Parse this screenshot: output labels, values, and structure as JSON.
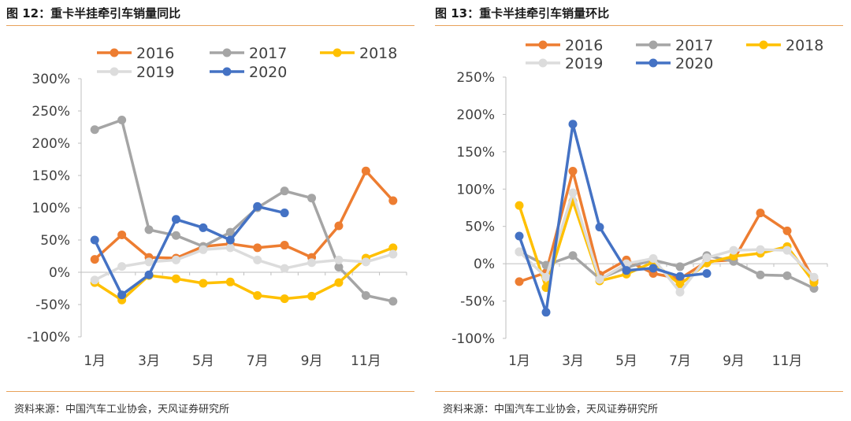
{
  "charts": [
    {
      "title": "图 12：重卡半挂牵引车销量同比",
      "source": "资料来源：中国汽车工业协会，天风证券研究所"
    },
    {
      "title": "图 13：重卡半挂牵引车销量环比",
      "source": "资料来源：中国汽车工业协会，天风证券研究所"
    }
  ],
  "chart_data": [
    {
      "type": "line",
      "title": "",
      "x": [
        "1月",
        "2月",
        "3月",
        "4月",
        "5月",
        "6月",
        "7月",
        "8月",
        "9月",
        "10月",
        "11月",
        "12月"
      ],
      "x_tick_labels": [
        "1月",
        "3月",
        "5月",
        "7月",
        "9月",
        "11月"
      ],
      "y_tick_labels": [
        "300%",
        "250%",
        "200%",
        "150%",
        "100%",
        "50%",
        "0%",
        "-50%",
        "-100%"
      ],
      "ylim": [
        -100,
        300
      ],
      "y_unit": "%",
      "grid": false,
      "legend_position": "top",
      "series": [
        {
          "name": "2016",
          "color": "#ED7D31",
          "values": [
            20,
            58,
            23,
            22,
            40,
            44,
            38,
            42,
            23,
            72,
            157,
            111
          ]
        },
        {
          "name": "2017",
          "color": "#A5A5A5",
          "values": [
            221,
            236,
            66,
            57,
            40,
            62,
            100,
            126,
            115,
            8,
            -36,
            -45
          ]
        },
        {
          "name": "2018",
          "color": "#FFC000",
          "values": [
            -16,
            -43,
            -5,
            -10,
            -17,
            -15,
            -36,
            -41,
            -37,
            -16,
            22,
            38
          ]
        },
        {
          "name": "2019",
          "color": "#DCDCDC",
          "values": [
            -12,
            9,
            16,
            19,
            35,
            38,
            19,
            6,
            15,
            19,
            16,
            28
          ]
        },
        {
          "name": "2020",
          "color": "#4472C4",
          "values": [
            50,
            -35,
            -4,
            82,
            69,
            50,
            102,
            92,
            null,
            null,
            null,
            null
          ]
        }
      ]
    },
    {
      "type": "line",
      "title": "",
      "x": [
        "1月",
        "2月",
        "3月",
        "4月",
        "5月",
        "6月",
        "7月",
        "8月",
        "9月",
        "10月",
        "11月",
        "12月"
      ],
      "x_tick_labels": [
        "1月",
        "3月",
        "5月",
        "7月",
        "9月",
        "11月"
      ],
      "y_tick_labels": [
        "250%",
        "200%",
        "150%",
        "100%",
        "50%",
        "0%",
        "-50%",
        "-100%"
      ],
      "ylim": [
        -100,
        250
      ],
      "y_unit": "%",
      "grid": false,
      "legend_position": "top",
      "series": [
        {
          "name": "2016",
          "color": "#ED7D31",
          "values": [
            -24,
            -12,
            124,
            -15,
            5,
            -13,
            -20,
            3,
            5,
            68,
            44,
            -22
          ]
        },
        {
          "name": "2017",
          "color": "#A5A5A5",
          "values": [
            16,
            -2,
            11,
            -20,
            -5,
            5,
            -4,
            11,
            3,
            -15,
            -16,
            -33
          ]
        },
        {
          "name": "2018",
          "color": "#FFC000",
          "values": [
            78,
            -32,
            84,
            -23,
            -14,
            2,
            -28,
            1,
            10,
            14,
            23,
            -25
          ]
        },
        {
          "name": "2019",
          "color": "#DCDCDC",
          "values": [
            16,
            -18,
            95,
            -21,
            0,
            7,
            -38,
            8,
            18,
            19,
            18,
            -18
          ]
        },
        {
          "name": "2020",
          "color": "#4472C4",
          "values": [
            37,
            -65,
            187,
            49,
            -9,
            -6,
            -17,
            -13,
            null,
            null,
            null,
            null
          ]
        }
      ]
    }
  ]
}
